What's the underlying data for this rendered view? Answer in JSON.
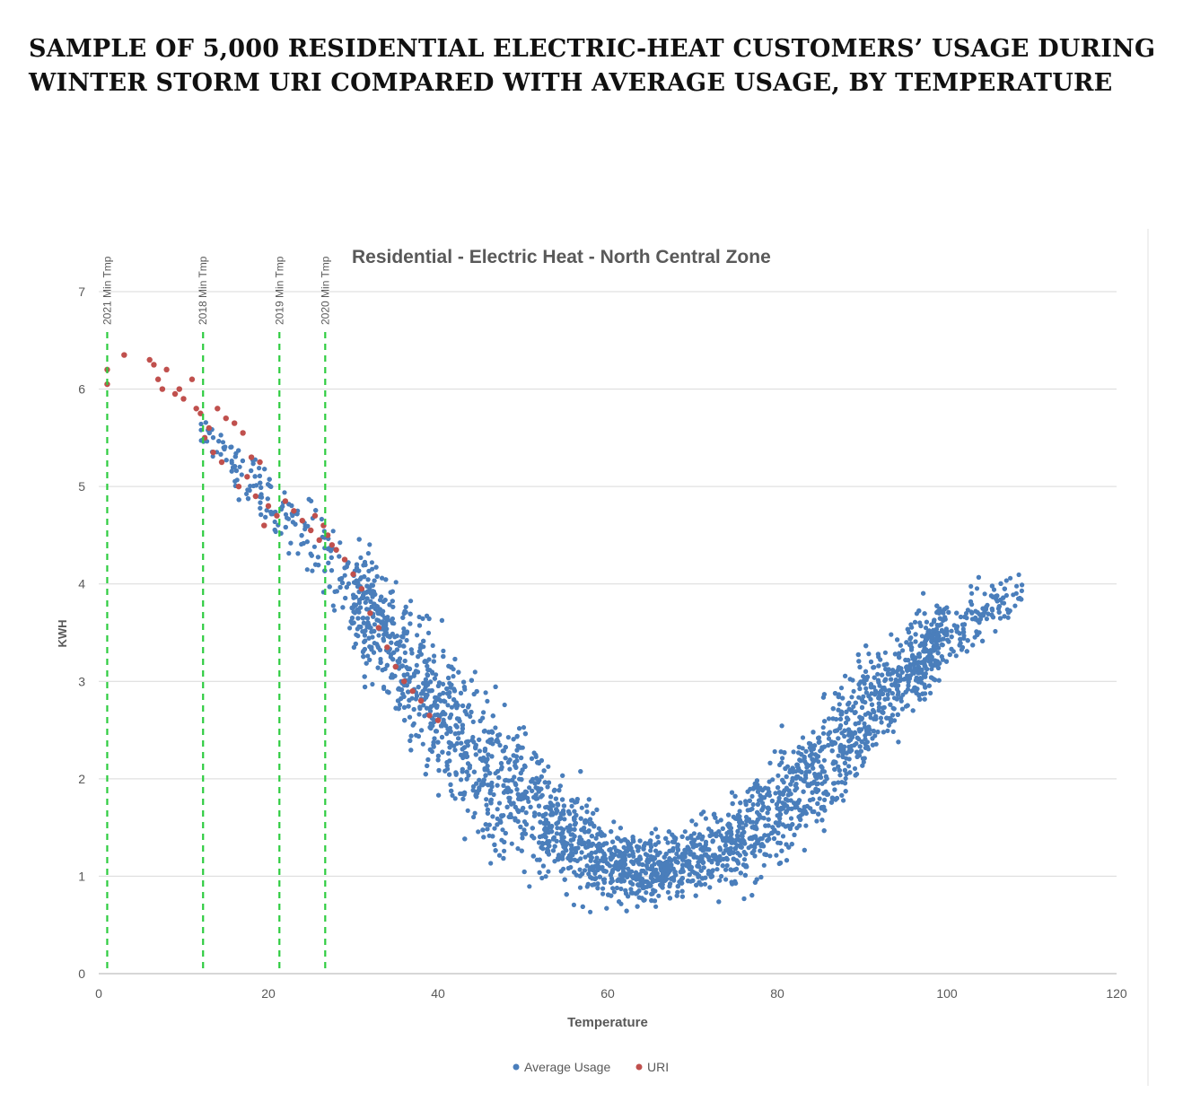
{
  "page": {
    "title_line1": "SAMPLE OF 5,000 RESIDENTIAL ELECTRIC-HEAT CUSTOMERS’ USAGE DURING",
    "title_line2": "WINTER STORM URI COMPARED WITH AVERAGE USAGE, BY TEMPERATURE"
  },
  "colors": {
    "average_usage": "#4a7ebb",
    "uri": "#c0504d",
    "reference_lines": "#2ecc40",
    "gridlines": "#d9d9d9",
    "axis_text": "#595959",
    "chart_title": "#595959"
  },
  "chart_data": {
    "type": "scatter",
    "title": "Residential - Electric Heat - North Central Zone",
    "xlabel": "Temperature",
    "ylabel": "KWH",
    "xlim": [
      0,
      120
    ],
    "ylim": [
      0,
      7
    ],
    "x_ticks": [
      0,
      20,
      40,
      60,
      80,
      100,
      120
    ],
    "y_ticks": [
      0,
      1,
      2,
      3,
      4,
      5,
      6,
      7
    ],
    "grid": "horizontal",
    "legend_position": "bottom",
    "reference_lines": [
      {
        "x": 1,
        "label": "2021 Min Tmp"
      },
      {
        "x": 12.3,
        "label": "2018 Min Tmp"
      },
      {
        "x": 21.3,
        "label": "2019 Min Tmp"
      },
      {
        "x": 26.7,
        "label": "2020 Min Tmp"
      }
    ],
    "series": [
      {
        "name": "Average Usage",
        "description_samples": 5000,
        "band": {
          "x": [
            12,
            16,
            20,
            24,
            28,
            32,
            36,
            40,
            44,
            48,
            52,
            56,
            60,
            64,
            68,
            72,
            76,
            80,
            84,
            88,
            92,
            96,
            100,
            104,
            108
          ],
          "center": [
            5.6,
            5.2,
            4.85,
            4.55,
            4.15,
            3.65,
            3.15,
            2.7,
            2.3,
            1.95,
            1.65,
            1.4,
            1.15,
            1.05,
            1.1,
            1.25,
            1.45,
            1.7,
            2.05,
            2.4,
            2.8,
            3.15,
            3.45,
            3.7,
            3.9
          ],
          "spread": [
            0.2,
            0.2,
            0.25,
            0.3,
            0.4,
            0.55,
            0.65,
            0.7,
            0.7,
            0.65,
            0.6,
            0.5,
            0.4,
            0.3,
            0.3,
            0.35,
            0.45,
            0.5,
            0.55,
            0.55,
            0.5,
            0.45,
            0.35,
            0.25,
            0.2
          ]
        }
      },
      {
        "name": "URI",
        "points": [
          [
            1,
            6.2
          ],
          [
            1,
            6.05
          ],
          [
            3,
            6.35
          ],
          [
            6,
            6.3
          ],
          [
            6.5,
            6.25
          ],
          [
            7,
            6.1
          ],
          [
            7.5,
            6.0
          ],
          [
            8,
            6.2
          ],
          [
            9,
            5.95
          ],
          [
            9.5,
            6.0
          ],
          [
            10,
            5.9
          ],
          [
            11,
            6.1
          ],
          [
            11.5,
            5.8
          ],
          [
            12,
            5.75
          ],
          [
            12.5,
            5.5
          ],
          [
            13,
            5.6
          ],
          [
            13.5,
            5.35
          ],
          [
            14,
            5.8
          ],
          [
            14.5,
            5.25
          ],
          [
            15,
            5.7
          ],
          [
            16,
            5.65
          ],
          [
            16.5,
            5.0
          ],
          [
            17,
            5.55
          ],
          [
            17.5,
            5.1
          ],
          [
            18,
            5.3
          ],
          [
            18.5,
            4.9
          ],
          [
            19,
            5.25
          ],
          [
            19.5,
            4.6
          ],
          [
            20,
            4.8
          ],
          [
            21,
            4.7
          ],
          [
            22,
            4.85
          ],
          [
            23,
            4.75
          ],
          [
            24,
            4.65
          ],
          [
            25,
            4.55
          ],
          [
            25.5,
            4.7
          ],
          [
            26,
            4.45
          ],
          [
            26.5,
            4.6
          ],
          [
            27,
            4.5
          ],
          [
            27.5,
            4.4
          ],
          [
            28,
            4.35
          ],
          [
            29,
            4.25
          ],
          [
            30,
            4.1
          ],
          [
            31,
            3.95
          ],
          [
            32,
            3.7
          ],
          [
            33,
            3.55
          ],
          [
            34,
            3.35
          ],
          [
            35,
            3.15
          ],
          [
            36,
            3.0
          ],
          [
            37,
            2.9
          ],
          [
            38,
            2.8
          ],
          [
            39,
            2.65
          ],
          [
            40,
            2.6
          ]
        ]
      }
    ]
  }
}
